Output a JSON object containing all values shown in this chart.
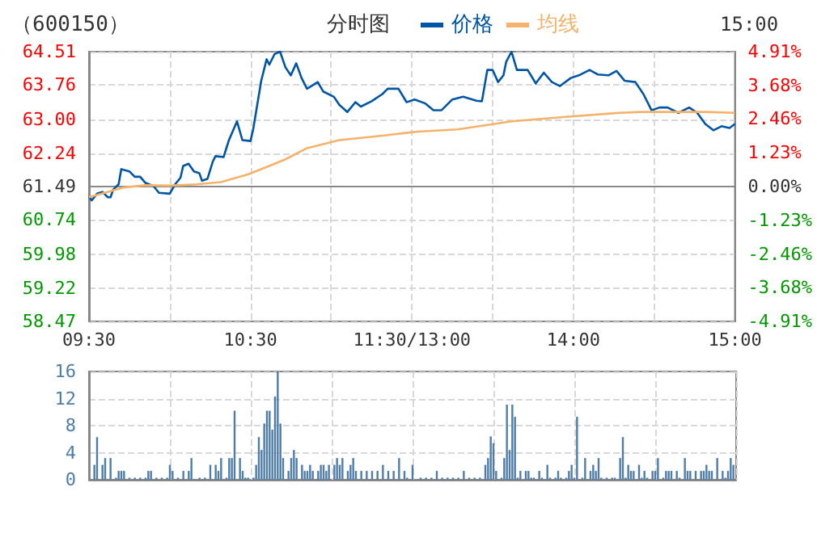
{
  "chart_data": [
    {
      "type": "line",
      "title": "分时图",
      "subtitle": "（600150）",
      "annotations": [
        "15:00"
      ],
      "legend": "top",
      "grid": true,
      "marker": "none",
      "categories": [
        "09:30",
        null,
        null,
        null,
        null,
        null,
        null,
        null,
        null,
        null,
        null,
        null,
        null,
        null,
        null,
        null,
        null,
        null,
        null,
        null,
        null,
        null,
        null,
        null,
        null,
        null,
        null,
        null,
        null,
        null,
        null,
        null,
        null,
        null,
        null,
        null,
        null,
        null,
        null,
        null,
        null,
        null,
        null,
        null,
        null,
        null,
        null,
        null,
        null,
        null,
        null,
        null,
        null,
        null,
        null,
        null,
        null,
        null,
        null,
        null,
        "10:30",
        null,
        null,
        null,
        null,
        null,
        null,
        null,
        null,
        null,
        null,
        null,
        null,
        null,
        null,
        null,
        null,
        null,
        null,
        null,
        null,
        null,
        null,
        null,
        null,
        null,
        null,
        null,
        null,
        null,
        null,
        null,
        null,
        null,
        null,
        null,
        null,
        null,
        null,
        null,
        null,
        null,
        null,
        null,
        null,
        null,
        null,
        null,
        null,
        null,
        null,
        null,
        null,
        null,
        null,
        null,
        null,
        null,
        null,
        null,
        "11:30/13:00",
        null,
        null,
        null,
        null,
        null,
        null,
        null,
        null,
        null,
        null,
        null,
        null,
        null,
        null,
        null,
        null,
        null,
        null,
        null,
        null,
        null,
        null,
        null,
        null,
        null,
        null,
        null,
        null,
        null,
        null,
        null,
        null,
        null,
        null,
        null,
        null,
        null,
        null,
        null,
        null,
        null,
        null,
        null,
        null,
        null,
        null,
        null,
        null,
        null,
        null,
        null,
        null,
        null,
        null,
        null,
        null,
        null,
        null,
        null,
        "14:00",
        null,
        null,
        null,
        null,
        null,
        null,
        null,
        null,
        null,
        null,
        null,
        null,
        null,
        null,
        null,
        null,
        null,
        null,
        null,
        null,
        null,
        null,
        null,
        null,
        null,
        null,
        null,
        null,
        null,
        null,
        null,
        null,
        null,
        null,
        null,
        null,
        null,
        null,
        null,
        null,
        null,
        null,
        null,
        null,
        null,
        null,
        null,
        null,
        null,
        null,
        null,
        null,
        null,
        null,
        null,
        null,
        null,
        null,
        null,
        "15:00"
      ],
      "ylim": [
        58.47,
        64.51
      ],
      "yticks": [
        58.47,
        59.22,
        59.98,
        60.74,
        61.49,
        62.24,
        {
          "value": 63,
          "label": "63.00"
        },
        63.76,
        64.51
      ],
      "y2lim": [
        -4.91,
        4.91
      ],
      "y2ticks": [
        {
          "value": -4.91,
          "label": "-4.91%"
        },
        {
          "value": -3.68,
          "label": "-3.68%"
        },
        {
          "value": -2.46,
          "label": "-2.46%"
        },
        {
          "value": -1.23,
          "label": "-1.23%"
        },
        {
          "value": 0,
          "label": "0.00%"
        },
        {
          "value": 1.23,
          "label": "1.23%"
        },
        {
          "value": 2.46,
          "label": "2.46%"
        },
        {
          "value": 3.68,
          "label": "3.68%"
        },
        {
          "value": 4.91,
          "label": "4.91%"
        }
      ],
      "series": [
        {
          "name": "价格",
          "color": "#0055a5",
          "values": [
            61.27,
            61.18,
            null,
            61.33,
            null,
            61.37,
            null,
            61.25,
            61.25,
            61.42,
            null,
            61.54,
            61.88,
            null,
            null,
            61.83,
            null,
            61.71,
            null,
            61.71,
            null,
            61.57,
            null,
            null,
            61.5,
            null,
            61.35,
            null,
            null,
            null,
            61.33,
            null,
            61.54,
            null,
            61.69,
            61.95,
            null,
            62.0,
            null,
            61.83,
            null,
            61.79,
            61.62,
            null,
            61.66,
            null,
            62.05,
            62.17,
            null,
            null,
            62.15,
            null,
            62.53,
            null,
            null,
            62.95,
            null,
            62.53,
            null,
            null,
            62.51,
            62.77,
            null,
            null,
            63.86,
            null,
            64.34,
            64.22,
            null,
            64.46,
            null,
            64.51,
            null,
            64.16,
            null,
            63.98,
            null,
            64.25,
            null,
            63.92,
            null,
            63.68,
            null,
            null,
            null,
            63.83,
            null,
            63.62,
            null,
            null,
            null,
            63.5,
            null,
            63.32,
            null,
            null,
            63.16,
            null,
            null,
            63.38,
            null,
            63.28,
            null,
            null,
            null,
            63.4,
            null,
            null,
            null,
            63.56,
            null,
            63.68,
            null,
            null,
            null,
            63.68,
            null,
            null,
            63.38,
            null,
            null,
            63.44,
            null,
            null,
            null,
            63.35,
            null,
            null,
            63.2,
            null,
            null,
            63.2,
            null,
            null,
            null,
            63.44,
            null,
            null,
            null,
            63.5,
            null,
            null,
            null,
            null,
            63.41,
            null,
            63.4,
            null,
            64.1,
            null,
            64.1,
            null,
            63.83,
            null,
            63.98,
            64.28,
            null,
            64.51,
            null,
            64.1,
            null,
            null,
            null,
            64.1,
            null,
            null,
            63.8,
            null,
            null,
            64.04,
            null,
            null,
            63.83,
            null,
            null,
            63.74,
            null,
            null,
            null,
            63.92,
            null,
            null,
            63.98,
            null,
            null,
            null,
            64.1,
            null,
            null,
            64.0,
            null,
            null,
            null,
            63.98,
            null,
            null,
            64.08,
            null,
            null,
            63.86,
            null,
            null,
            null,
            63.83,
            null,
            null,
            63.56,
            null,
            null,
            63.2,
            null,
            null,
            63.26,
            null,
            null,
            63.26,
            null,
            null,
            null,
            63.14,
            null,
            null,
            null,
            63.26,
            null,
            null,
            63.14,
            null,
            null,
            62.89,
            null,
            null,
            62.75,
            null,
            null,
            62.84,
            null,
            null,
            62.8,
            null,
            62.89
          ]
        },
        {
          "name": "均线",
          "color": "#f5b26b",
          "values": [
            61.25,
            null,
            null,
            null,
            null,
            null,
            null,
            null,
            null,
            null,
            null,
            null,
            null,
            61.47,
            null,
            null,
            null,
            null,
            null,
            null,
            null,
            61.52,
            null,
            null,
            null,
            null,
            null,
            null,
            null,
            null,
            61.51,
            null,
            null,
            null,
            null,
            null,
            null,
            null,
            null,
            null,
            61.54,
            null,
            null,
            null,
            null,
            null,
            null,
            null,
            null,
            61.59,
            null,
            null,
            null,
            null,
            null,
            null,
            null,
            null,
            null,
            61.76,
            null,
            null,
            null,
            null,
            null,
            null,
            null,
            61.95,
            null,
            null,
            null,
            null,
            null,
            62.1,
            null,
            null,
            null,
            null,
            null,
            null,
            null,
            62.35,
            null,
            null,
            null,
            null,
            null,
            null,
            null,
            null,
            null,
            null,
            null,
            62.53,
            null,
            null,
            null,
            null,
            null,
            null,
            null,
            null,
            null,
            null,
            null,
            null,
            null,
            null,
            null,
            62.63,
            null,
            null,
            null,
            null,
            null,
            null,
            null,
            null,
            null,
            null,
            null,
            null,
            62.72,
            null,
            null,
            null,
            null,
            null,
            null,
            null,
            null,
            null,
            null,
            null,
            null,
            null,
            null,
            62.77,
            null,
            null,
            null,
            null,
            null,
            null,
            null,
            null,
            null,
            null,
            null,
            null,
            null,
            null,
            null,
            null,
            null,
            null,
            null,
            62.95,
            null,
            null,
            null,
            null,
            null,
            null,
            null,
            null,
            null,
            null,
            null,
            null,
            null,
            null,
            null,
            null,
            null,
            null,
            null,
            63.05,
            null,
            null,
            null,
            null,
            null,
            null,
            null,
            null,
            null,
            null,
            null,
            null,
            null,
            null,
            null,
            null,
            null,
            null,
            null,
            63.14,
            null,
            null,
            null,
            null,
            null,
            null,
            null,
            63.16,
            null,
            null,
            null,
            null,
            null,
            null,
            null,
            null,
            null,
            null,
            null,
            null,
            null,
            null,
            null,
            null,
            null,
            null,
            null,
            null,
            null,
            null,
            null,
            63.16,
            null,
            null,
            null,
            null,
            null,
            null,
            null,
            null,
            null,
            null,
            63.14
          ]
        }
      ]
    },
    {
      "type": "bar",
      "grid": true,
      "tick_labels": "y",
      "ylim": [
        0,
        16
      ],
      "yticks": [
        0,
        4,
        8,
        12,
        16
      ],
      "color": "#4f7da8",
      "categories": [
        null,
        null,
        null,
        null,
        null,
        null,
        null,
        null,
        null,
        null,
        null,
        null,
        null,
        null,
        null,
        null,
        null,
        null,
        null,
        null,
        null,
        null,
        null,
        null,
        null,
        null,
        null,
        null,
        null,
        null,
        null,
        null,
        null,
        null,
        null,
        null,
        null,
        null,
        null,
        null,
        null,
        null,
        null,
        null,
        null,
        null,
        null,
        null,
        null,
        null,
        null,
        null,
        null,
        null,
        null,
        null,
        null,
        null,
        null,
        null,
        null,
        null,
        null,
        null,
        null,
        null,
        null,
        null,
        null,
        null,
        null,
        null,
        null,
        null,
        null,
        null,
        null,
        null,
        null,
        null,
        null,
        null,
        null,
        null,
        null,
        null,
        null,
        null,
        null,
        null,
        null,
        null,
        null,
        null,
        null,
        null,
        null,
        null,
        null,
        null,
        null,
        null,
        null,
        null,
        null,
        null,
        null,
        null,
        null,
        null,
        null,
        null,
        null,
        null,
        null,
        null,
        null,
        null,
        null,
        null,
        null,
        null,
        null,
        null,
        null,
        null,
        null,
        null,
        null,
        null,
        null,
        null,
        null,
        null,
        null,
        null,
        null,
        null,
        null,
        null,
        null,
        null,
        null,
        null,
        null,
        null,
        null,
        null,
        null,
        null,
        null,
        null,
        null,
        null,
        null,
        null,
        null,
        null,
        null,
        null,
        null,
        null,
        null,
        null,
        null,
        null,
        null,
        null,
        null,
        null,
        null,
        null,
        null,
        null,
        null,
        null,
        null,
        null,
        null,
        null,
        null,
        null,
        null,
        null,
        null,
        null,
        null,
        null,
        null,
        null,
        null,
        null,
        null,
        null,
        null,
        null,
        null,
        null,
        null,
        null,
        null,
        null,
        null,
        null,
        null,
        null,
        null,
        null,
        null,
        null,
        null,
        null,
        null,
        null,
        null,
        null,
        null,
        null,
        null,
        null,
        null,
        null,
        null,
        null,
        null,
        null,
        null,
        null,
        null,
        null,
        null,
        null,
        null,
        null,
        null,
        null,
        null,
        null,
        null,
        null,
        null
      ],
      "values": [
        null,
        null,
        2.2,
        6.3,
        null,
        2.2,
        3.2,
        null,
        3.2,
        null,
        0.3,
        1.3,
        1.3,
        1.3,
        null,
        0.3,
        null,
        0.3,
        null,
        0.3,
        null,
        0.3,
        1.3,
        1.3,
        null,
        0.3,
        null,
        0.3,
        null,
        0.3,
        2.2,
        1.3,
        null,
        0.3,
        null,
        1.3,
        null,
        1.3,
        3.2,
        null,
        null,
        0.3,
        null,
        0.3,
        null,
        2.2,
        null,
        2.2,
        1.3,
        3.2,
        null,
        0.3,
        3.2,
        3.2,
        10.2,
        null,
        3.2,
        1.3,
        0.3,
        0.3,
        null,
        0.3,
        2.2,
        6.3,
        4.4,
        8.3,
        10.2,
        10.2,
        7.4,
        12.3,
        16,
        8.3,
        3.2,
        null,
        1.3,
        3.2,
        4.4,
        3.2,
        null,
        2.2,
        1.3,
        1.3,
        2.2,
        1.3,
        null,
        1.3,
        2.2,
        2.2,
        1.3,
        2.2,
        null,
        2.2,
        3.2,
        2.2,
        3.2,
        null,
        1.3,
        2.2,
        3.2,
        1.3,
        null,
        1.3,
        null,
        1.3,
        null,
        1.3,
        null,
        1.3,
        null,
        2.2,
        null,
        1.3,
        null,
        1.3,
        null,
        3.2,
        null,
        1.3,
        0.3,
        null,
        2.2,
        null,
        null,
        0.3,
        null,
        0.3,
        null,
        0.3,
        null,
        1.3,
        null,
        0.3,
        null,
        0.3,
        null,
        0.3,
        null,
        0.3,
        null,
        1.3,
        null,
        0.3,
        null,
        0.3,
        null,
        0.3,
        null,
        2.2,
        3.2,
        6.4,
        5.4,
        1.3,
        null,
        0.3,
        3.2,
        11.1,
        4.4,
        11.1,
        9.3,
        0.3,
        1.3,
        null,
        1.3,
        1.3,
        0.3,
        0.3,
        null,
        1.3,
        0.3,
        null,
        2.2,
        0.3,
        null,
        0.3,
        1.3,
        0.3,
        null,
        0.3,
        1.3,
        2.2,
        0.3,
        9.3,
        null,
        0.3,
        3.2,
        null,
        1.3,
        2.2,
        1.3,
        3.2,
        0.3,
        null,
        0.3,
        null,
        0.3,
        0.3,
        null,
        3.2,
        6.3,
        0.3,
        2.2,
        1.3,
        1.3,
        null,
        2.2,
        0.3,
        1.3,
        0.3,
        null,
        1.3,
        1.3,
        3.2,
        null,
        0.3,
        1.3,
        1.3,
        1.3,
        null,
        1.3,
        0.3,
        null,
        3.2,
        1.3,
        1.3,
        null,
        1.3,
        null,
        1.3,
        1.3,
        2.2,
        1.3,
        1.3,
        null,
        3.2,
        null,
        1.3,
        0.3,
        1.3,
        3.2,
        2.2,
        null
      ]
    }
  ]
}
